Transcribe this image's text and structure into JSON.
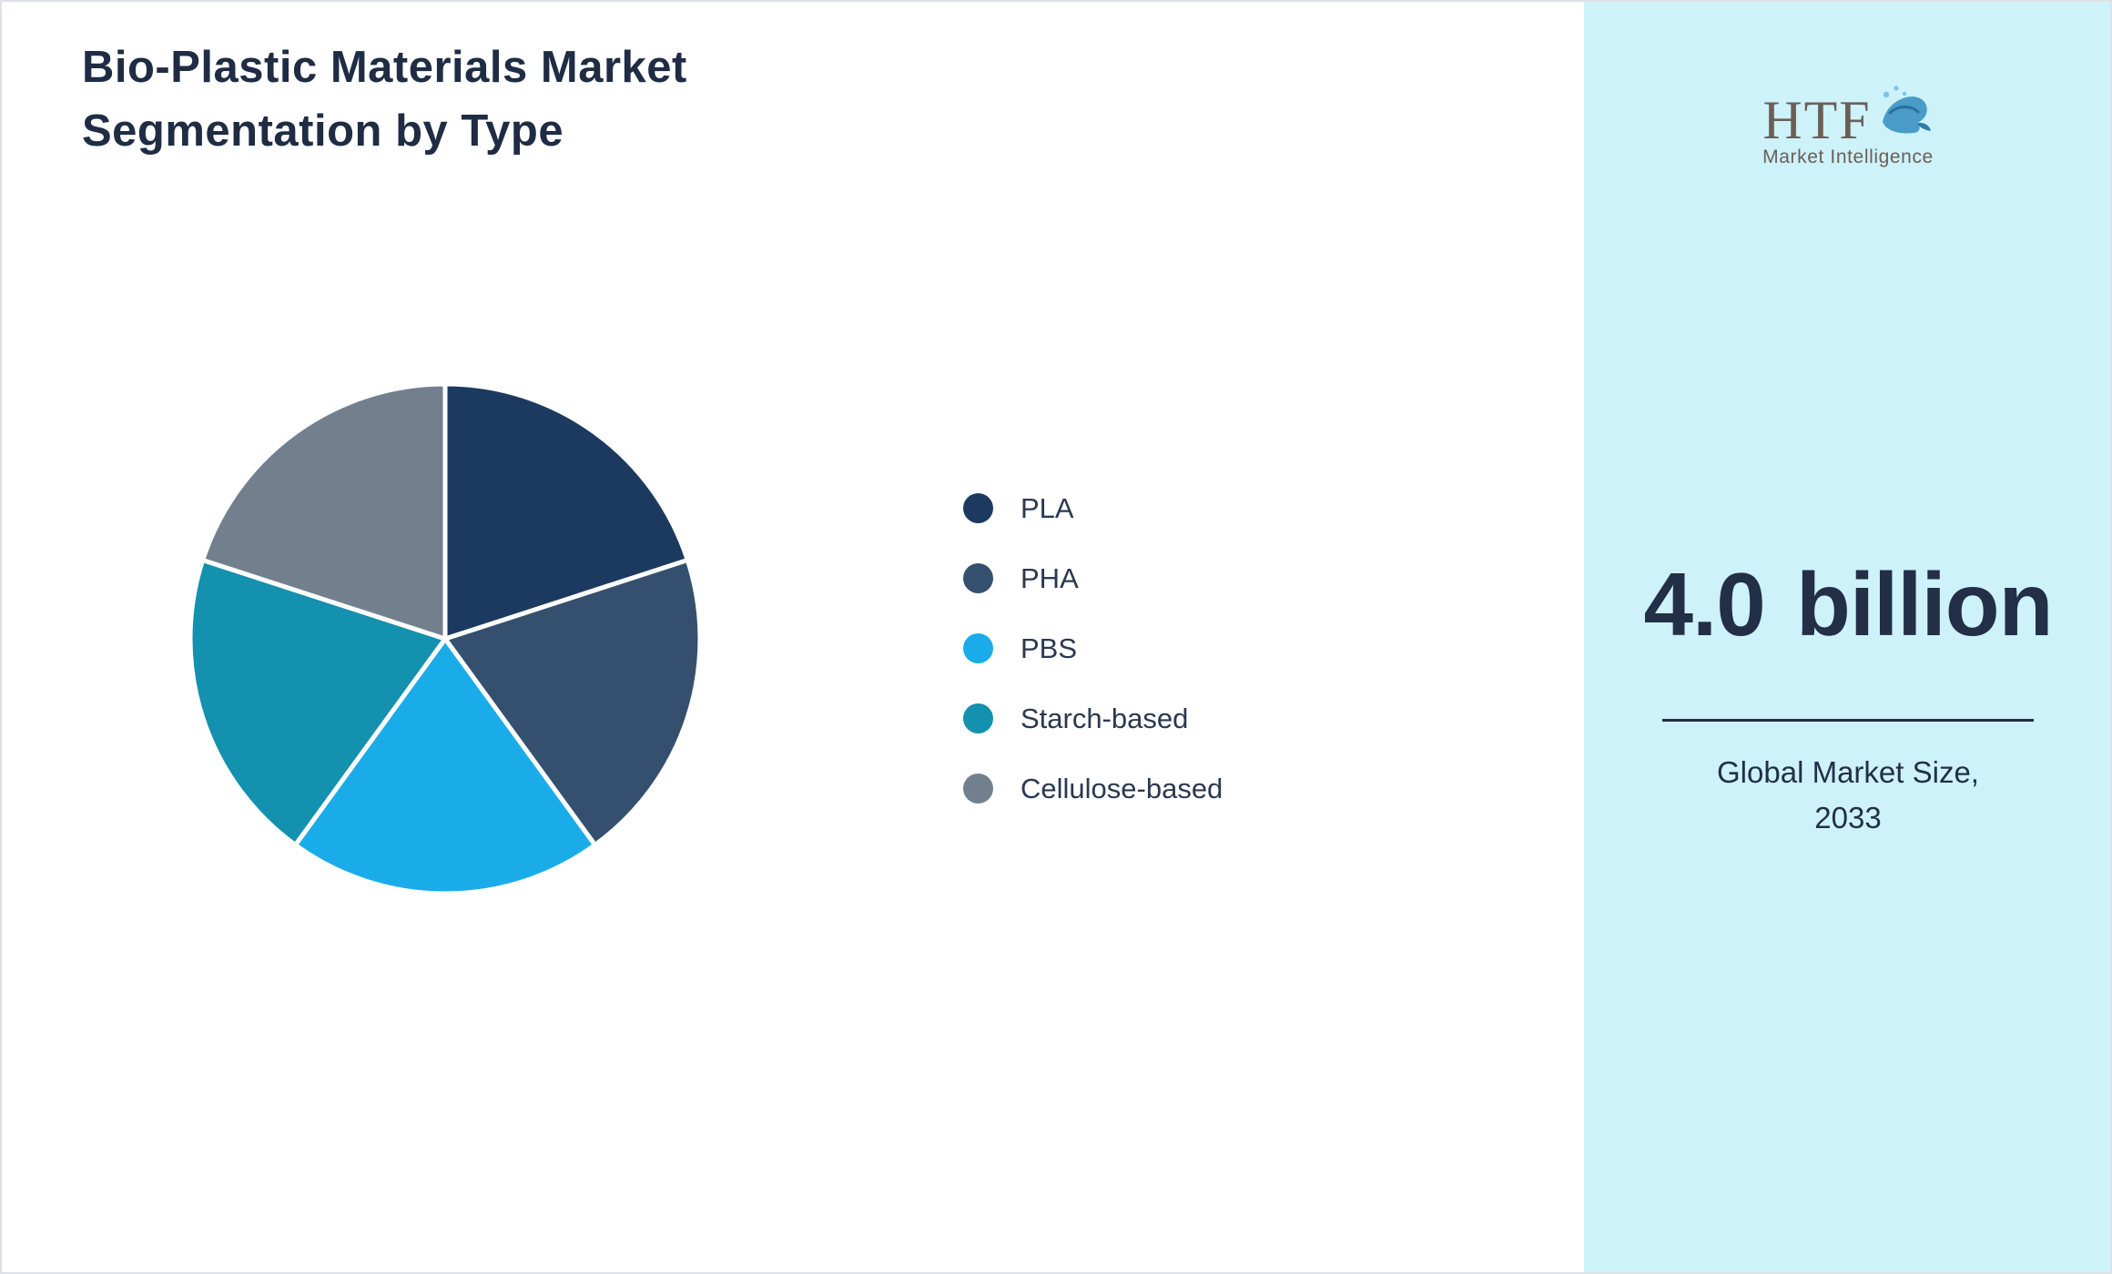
{
  "header": {
    "title_line1": "Bio-Plastic Materials Market",
    "title_line2": "Segmentation by Type"
  },
  "chart_data": {
    "type": "pie",
    "title": "Bio-Plastic Materials Market Segmentation by Type",
    "labels": [
      "PLA",
      "PHA",
      "PBS",
      "Starch-based",
      "Cellulose-based"
    ],
    "values": [
      20,
      20,
      20,
      20,
      20
    ],
    "colors": [
      "#1c3a60",
      "#35506f",
      "#1aace9",
      "#1391af",
      "#72808e"
    ],
    "start_angle_deg": 0,
    "direction": "clockwise",
    "legend_position": "right",
    "slice_border_color": "#ffffff"
  },
  "side_panel": {
    "background": "#cdf2fa",
    "logo": {
      "text": "HTF",
      "subtitle": "Market Intelligence"
    },
    "market_size_value": "4.0 billion",
    "caption_line1": "Global Market Size,",
    "caption_line2": "2033"
  }
}
